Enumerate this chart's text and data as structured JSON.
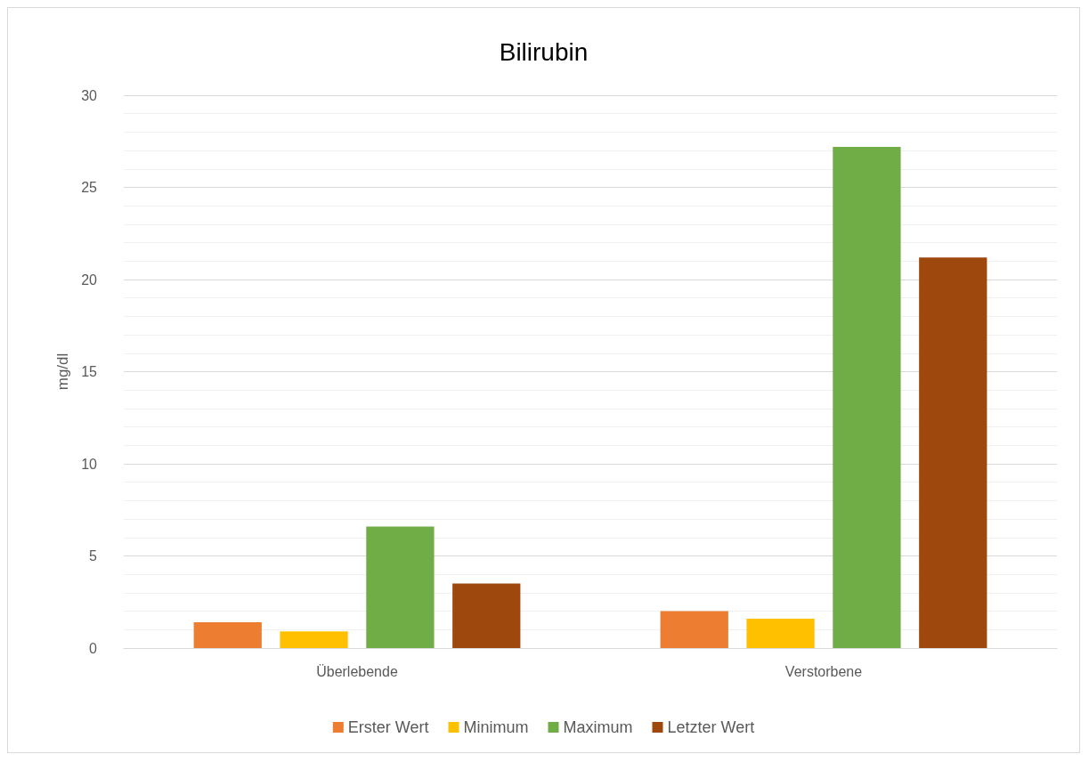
{
  "chart_data": {
    "type": "bar",
    "title": "Bilirubin",
    "ylabel": "mg/dl",
    "categories": [
      "Überlebende",
      "Verstorbene"
    ],
    "series": [
      {
        "name": "Erster Wert",
        "color": "#ed7d31",
        "values": [
          1.4,
          2.0
        ]
      },
      {
        "name": "Minimum",
        "color": "#ffc000",
        "values": [
          0.9,
          1.6
        ]
      },
      {
        "name": "Maximum",
        "color": "#70ad47",
        "values": [
          6.6,
          27.2
        ]
      },
      {
        "name": "Letzter Wert",
        "color": "#9e480e",
        "values": [
          3.5,
          21.2
        ]
      }
    ],
    "ylim": [
      0,
      30
    ],
    "yticks": [
      0,
      5,
      10,
      15,
      20,
      25,
      30
    ],
    "grid": "y",
    "legend": "bottom"
  }
}
